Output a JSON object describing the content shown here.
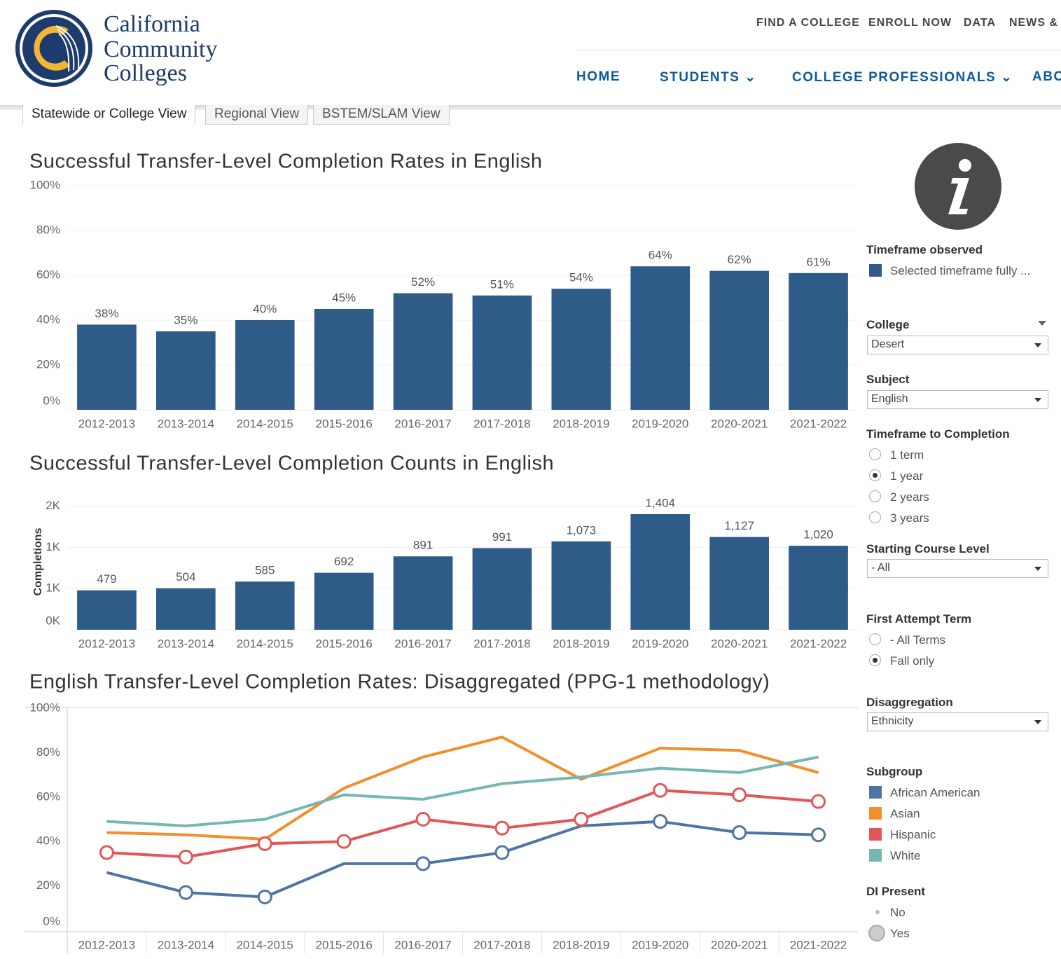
{
  "header": {
    "logo": [
      "California",
      "Community",
      "Colleges"
    ],
    "top_nav": [
      "FIND A COLLEGE",
      "ENROLL NOW",
      "DATA",
      "NEWS & I"
    ],
    "main_nav": [
      "HOME",
      "STUDENTS",
      "COLLEGE PROFESSIONALS",
      "ABO"
    ]
  },
  "tabs": [
    "Statewide or College View",
    "Regional View",
    "BSTEM/SLAM View"
  ],
  "chart_data": [
    {
      "type": "bar",
      "title": "Successful Transfer-Level Completion Rates in English",
      "categories": [
        "2012-2013",
        "2013-2014",
        "2014-2015",
        "2015-2016",
        "2016-2017",
        "2017-2018",
        "2018-2019",
        "2019-2020",
        "2020-2021",
        "2021-2022"
      ],
      "values": [
        38,
        35,
        40,
        45,
        52,
        51,
        54,
        64,
        62,
        61
      ],
      "value_labels": [
        "38%",
        "35%",
        "40%",
        "45%",
        "52%",
        "51%",
        "54%",
        "64%",
        "62%",
        "61%"
      ],
      "color": "#2f5b89",
      "ylim": [
        0,
        100
      ],
      "yticks": [
        {
          "value": 0,
          "label": "0%"
        },
        {
          "value": 20,
          "label": "20%"
        },
        {
          "value": 40,
          "label": "40%"
        },
        {
          "value": 60,
          "label": "60%"
        },
        {
          "value": 80,
          "label": "80%"
        },
        {
          "value": 100,
          "label": "100%"
        }
      ],
      "grid": true
    },
    {
      "type": "bar",
      "title": "Successful Transfer-Level Completion Counts in English",
      "y_label": "Completions",
      "categories": [
        "2012-2013",
        "2013-2014",
        "2014-2015",
        "2015-2016",
        "2016-2017",
        "2017-2018",
        "2018-2019",
        "2019-2020",
        "2020-2021",
        "2021-2022"
      ],
      "values": [
        479,
        504,
        585,
        692,
        891,
        991,
        1073,
        1404,
        1127,
        1020
      ],
      "value_labels": [
        "479",
        "504",
        "585",
        "692",
        "891",
        "991",
        "1,073",
        "1,404",
        "1,127",
        "1,020"
      ],
      "color": "#2f5b89",
      "ylim": [
        0,
        1650
      ],
      "yticks": [
        {
          "value": 0,
          "label": "0K"
        },
        {
          "value": 500,
          "label": "1K"
        },
        {
          "value": 1000,
          "label": "1K"
        },
        {
          "value": 1500,
          "label": "2K"
        }
      ],
      "grid": true
    },
    {
      "type": "line",
      "title": "English Transfer-Level Completion Rates: Disaggregated (PPG-1 methodology)",
      "categories": [
        "2012-2013",
        "2013-2014",
        "2014-2015",
        "2015-2016",
        "2016-2017",
        "2017-2018",
        "2018-2019",
        "2019-2020",
        "2020-2021",
        "2021-2022"
      ],
      "series": [
        {
          "name": "African American",
          "color": "#4e74a6",
          "values": [
            26,
            17,
            15,
            30,
            30,
            35,
            47,
            49,
            44,
            43
          ],
          "di_present": [
            false,
            true,
            true,
            false,
            true,
            true,
            false,
            true,
            true,
            true
          ]
        },
        {
          "name": "Asian",
          "color": "#f28e2b",
          "values": [
            44,
            43,
            41,
            64,
            78,
            87,
            68,
            82,
            81,
            71
          ],
          "di_present": [
            false,
            false,
            false,
            false,
            false,
            false,
            false,
            false,
            false,
            false
          ]
        },
        {
          "name": "Hispanic",
          "color": "#e15759",
          "values": [
            35,
            33,
            39,
            40,
            50,
            46,
            50,
            63,
            61,
            58
          ],
          "di_present": [
            true,
            true,
            true,
            true,
            true,
            true,
            true,
            true,
            true,
            true
          ]
        },
        {
          "name": "White",
          "color": "#76b7b2",
          "values": [
            49,
            47,
            50,
            61,
            59,
            66,
            69,
            73,
            71,
            78
          ],
          "di_present": [
            false,
            false,
            false,
            false,
            false,
            false,
            false,
            false,
            false,
            false
          ]
        }
      ],
      "ylim": [
        0,
        100
      ],
      "yticks": [
        {
          "value": 0,
          "label": "0%"
        },
        {
          "value": 20,
          "label": "20%"
        },
        {
          "value": 40,
          "label": "40%"
        },
        {
          "value": 60,
          "label": "60%"
        },
        {
          "value": 80,
          "label": "80%"
        },
        {
          "value": 100,
          "label": "100%"
        }
      ],
      "grid": false
    }
  ],
  "filters": {
    "timeframe_observed": {
      "label": "Timeframe observed",
      "legend": "Selected timeframe fully ..."
    },
    "college": {
      "label": "College",
      "value": "Desert"
    },
    "subject": {
      "label": "Subject",
      "value": "English"
    },
    "timeframe_to_completion": {
      "label": "Timeframe to Completion",
      "options": [
        "1 term",
        "1 year",
        "2 years",
        "3 years"
      ],
      "selected": 1
    },
    "starting_course_level": {
      "label": "Starting Course Level",
      "value": "- All"
    },
    "first_attempt_term": {
      "label": "First Attempt Term",
      "options": [
        "- All Terms",
        "Fall only"
      ],
      "selected": 1
    },
    "disaggregation": {
      "label": "Disaggregation",
      "value": "Ethnicity"
    },
    "subgroup": {
      "label": "Subgroup"
    },
    "di_present": {
      "label": "DI Present",
      "options": [
        "No",
        "Yes"
      ]
    }
  }
}
